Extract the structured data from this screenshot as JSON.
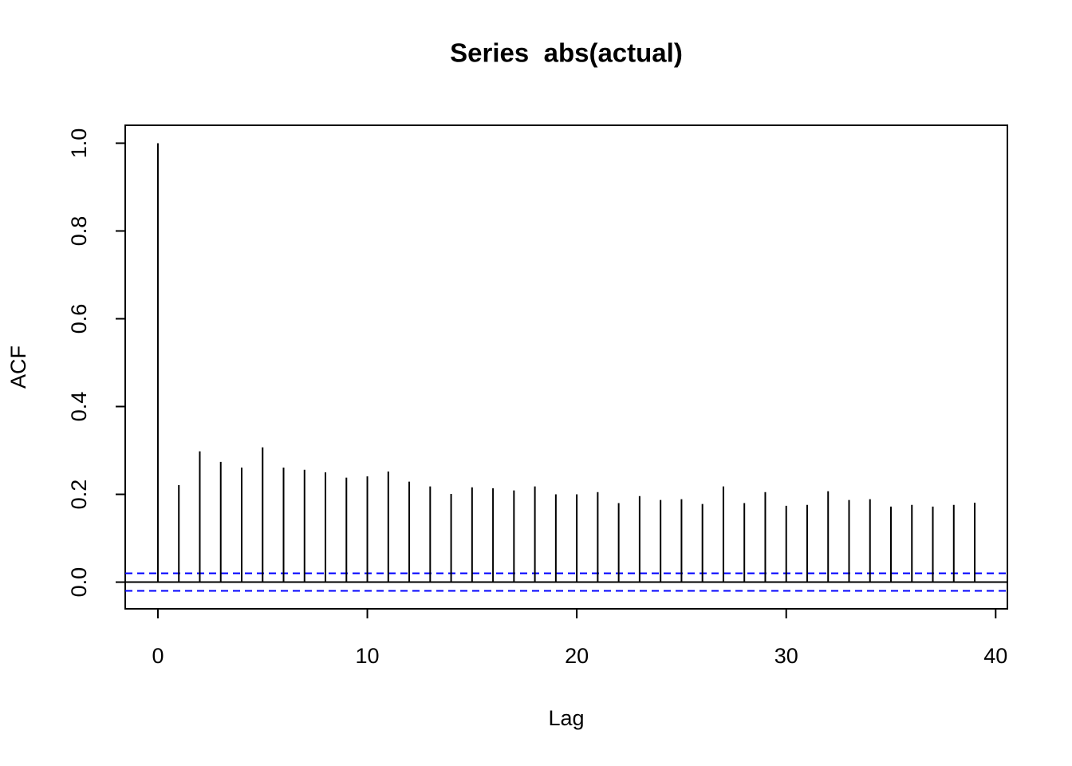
{
  "chart_data": {
    "type": "stem",
    "title": "Series  abs(actual)",
    "xlabel": "Lag",
    "ylabel": "ACF",
    "x": [
      0,
      1,
      2,
      3,
      4,
      5,
      6,
      7,
      8,
      9,
      10,
      11,
      12,
      13,
      14,
      15,
      16,
      17,
      18,
      19,
      20,
      21,
      22,
      23,
      24,
      25,
      26,
      27,
      28,
      29,
      30,
      31,
      32,
      33,
      34,
      35,
      36,
      37,
      38,
      39
    ],
    "values": [
      1.0,
      0.221,
      0.298,
      0.274,
      0.261,
      0.307,
      0.261,
      0.256,
      0.25,
      0.238,
      0.241,
      0.252,
      0.229,
      0.218,
      0.201,
      0.216,
      0.214,
      0.209,
      0.218,
      0.2,
      0.2,
      0.205,
      0.18,
      0.196,
      0.187,
      0.189,
      0.178,
      0.218,
      0.18,
      0.205,
      0.174,
      0.176,
      0.207,
      0.187,
      0.189,
      0.172,
      0.176,
      0.172,
      0.176,
      0.181
    ],
    "color": "#000000",
    "ci_upper": 0.02,
    "ci_lower": -0.02,
    "ci_color": "#0000ff",
    "xlim": [
      -1.56,
      40.56
    ],
    "xticks": [
      0,
      10,
      20,
      30,
      40
    ],
    "ylim": [
      -0.0608,
      1.0408
    ],
    "yticks": [
      {
        "value": 0,
        "label": "0.0"
      },
      0.2,
      0.4,
      0.6,
      0.8,
      {
        "value": 1,
        "label": "1.0"
      }
    ]
  }
}
